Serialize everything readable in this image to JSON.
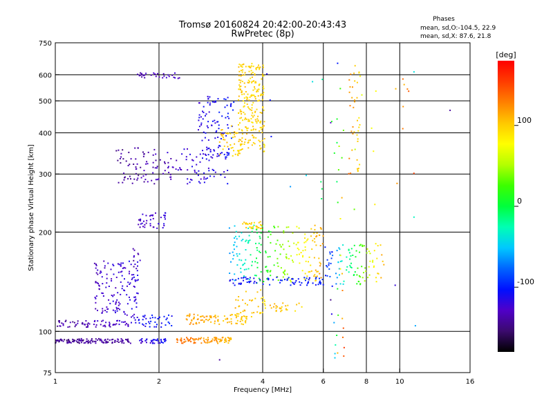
{
  "chart_data": {
    "type": "scatter",
    "title": "Tromsø 20160824 20:42:00-20:43:43",
    "subtitle": "RwPretec (8p)",
    "stats": {
      "heading": "Phases",
      "line_o": "mean, sd,O:-104.5, 22.9",
      "line_x": "mean, sd,X:  87.6, 21.8"
    },
    "xlabel": "Frequency [MHz]",
    "ylabel": "Stationary phase Virtual Height [km]",
    "x_scale": "log",
    "y_scale": "log",
    "xlim": [
      1,
      16
    ],
    "ylim": [
      75,
      750
    ],
    "x_ticks": [
      {
        "value": 1,
        "label": "1"
      },
      {
        "value": 2,
        "label": "2"
      },
      {
        "value": 4,
        "label": "4"
      },
      {
        "value": 6,
        "label": "6"
      },
      {
        "value": 8,
        "label": "8"
      },
      {
        "value": 10,
        "label": "10"
      },
      {
        "value": 16,
        "label": "16"
      }
    ],
    "x_gridlines": [
      2,
      4,
      6,
      8,
      10
    ],
    "y_ticks": [
      {
        "value": 75,
        "label": "75"
      },
      {
        "value": 100,
        "label": "100"
      },
      {
        "value": 200,
        "label": "200"
      },
      {
        "value": 300,
        "label": "300"
      },
      {
        "value": 400,
        "label": "400"
      },
      {
        "value": 500,
        "label": "500"
      },
      {
        "value": 600,
        "label": "600"
      },
      {
        "value": 750,
        "label": "750"
      }
    ],
    "y_gridlines": [
      100,
      200,
      300,
      400,
      500,
      600
    ],
    "grid": true,
    "colorbar": {
      "label": "[deg]",
      "range": [
        -180,
        180
      ],
      "ticks": [
        {
          "value": 100,
          "label": "100"
        },
        {
          "value": 0,
          "label": "0"
        },
        {
          "value": -100,
          "label": "-100"
        }
      ],
      "colors": [
        "#000000",
        "#3b0a6e",
        "#5000c8",
        "#0010ff",
        "#0064ff",
        "#00c8ff",
        "#00ffb4",
        "#00ff3c",
        "#3cff00",
        "#b4ff00",
        "#ffff00",
        "#ffc800",
        "#ff8000",
        "#ff3c00",
        "#ff0000"
      ]
    },
    "clusters": [
      {
        "x0": 1.0,
        "x1": 1.66,
        "y0": 92,
        "y1": 95,
        "n": 120,
        "phase0": -145,
        "phase1": -140
      },
      {
        "x0": 1.75,
        "x1": 2.1,
        "y0": 92,
        "y1": 95,
        "n": 35,
        "phase0": -125,
        "phase1": -110
      },
      {
        "x0": 2.25,
        "x1": 3.25,
        "y0": 92,
        "y1": 96,
        "n": 90,
        "phase0": 135,
        "phase1": 110
      },
      {
        "x0": 1.0,
        "x1": 1.66,
        "y0": 103,
        "y1": 108,
        "n": 70,
        "phase0": -140,
        "phase1": -125
      },
      {
        "x0": 1.66,
        "x1": 2.2,
        "y0": 103,
        "y1": 112,
        "n": 45,
        "phase0": -115,
        "phase1": -100
      },
      {
        "x0": 1.3,
        "x1": 1.75,
        "y0": 112,
        "y1": 165,
        "n": 140,
        "phase0": -130,
        "phase1": -115
      },
      {
        "x0": 1.68,
        "x1": 1.78,
        "y0": 155,
        "y1": 180,
        "n": 10,
        "phase0": -135,
        "phase1": -130
      },
      {
        "x0": 1.74,
        "x1": 2.1,
        "y0": 205,
        "y1": 230,
        "n": 40,
        "phase0": -130,
        "phase1": -120
      },
      {
        "x0": 1.5,
        "x1": 3.2,
        "y0": 280,
        "y1": 360,
        "n": 160,
        "phase0": -145,
        "phase1": -110
      },
      {
        "x0": 2.6,
        "x1": 3.3,
        "y0": 340,
        "y1": 520,
        "n": 90,
        "phase0": -120,
        "phase1": -100
      },
      {
        "x0": 1.72,
        "x1": 2.3,
        "y0": 585,
        "y1": 610,
        "n": 30,
        "phase0": -135,
        "phase1": -125
      },
      {
        "x0": 3.0,
        "x1": 3.5,
        "y0": 340,
        "y1": 420,
        "n": 50,
        "phase0": 105,
        "phase1": 95
      },
      {
        "x0": 3.4,
        "x1": 4.05,
        "y0": 350,
        "y1": 650,
        "n": 230,
        "phase0": 100,
        "phase1": 95
      },
      {
        "x0": 2.4,
        "x1": 3.6,
        "y0": 105,
        "y1": 113,
        "n": 90,
        "phase0": 120,
        "phase1": 100
      },
      {
        "x0": 3.3,
        "x1": 4.1,
        "y0": 110,
        "y1": 135,
        "n": 40,
        "phase0": 110,
        "phase1": 95
      },
      {
        "x0": 3.2,
        "x1": 6.0,
        "y0": 140,
        "y1": 210,
        "n": 220,
        "phase0": -60,
        "phase1": 120
      },
      {
        "x0": 3.2,
        "x1": 6.0,
        "y0": 138,
        "y1": 146,
        "n": 80,
        "phase0": -105,
        "phase1": -100
      },
      {
        "x0": 3.5,
        "x1": 4.0,
        "y0": 205,
        "y1": 215,
        "n": 30,
        "phase0": 100,
        "phase1": 95
      },
      {
        "x0": 4.2,
        "x1": 5.2,
        "y0": 115,
        "y1": 122,
        "n": 25,
        "phase0": 110,
        "phase1": 95
      },
      {
        "x0": 6.0,
        "x1": 9.0,
        "y0": 138,
        "y1": 185,
        "n": 100,
        "phase0": -110,
        "phase1": 115
      },
      {
        "x0": 7.1,
        "x1": 7.7,
        "y0": 300,
        "y1": 640,
        "n": 40,
        "phase0": 130,
        "phase1": 90
      },
      {
        "x0": 6.3,
        "x1": 6.9,
        "y0": 80,
        "y1": 450,
        "n": 30,
        "phase0": -140,
        "phase1": 160
      },
      {
        "x0": 4.0,
        "x1": 11.0,
        "y0": 230,
        "y1": 640,
        "n": 30,
        "phase0": -120,
        "phase1": 150
      }
    ],
    "points": [
      {
        "x": 6.6,
        "y": 650,
        "phase": -100
      },
      {
        "x": 11.0,
        "y": 612,
        "phase": -40
      },
      {
        "x": 10.3,
        "y": 560,
        "phase": 110
      },
      {
        "x": 14.0,
        "y": 468,
        "phase": -140
      },
      {
        "x": 11.0,
        "y": 222,
        "phase": -30
      },
      {
        "x": 11.1,
        "y": 104,
        "phase": -60
      },
      {
        "x": 3.0,
        "y": 82,
        "phase": -140
      },
      {
        "x": 6.6,
        "y": 86,
        "phase": 110
      },
      {
        "x": 9.7,
        "y": 138,
        "phase": -120
      }
    ]
  }
}
